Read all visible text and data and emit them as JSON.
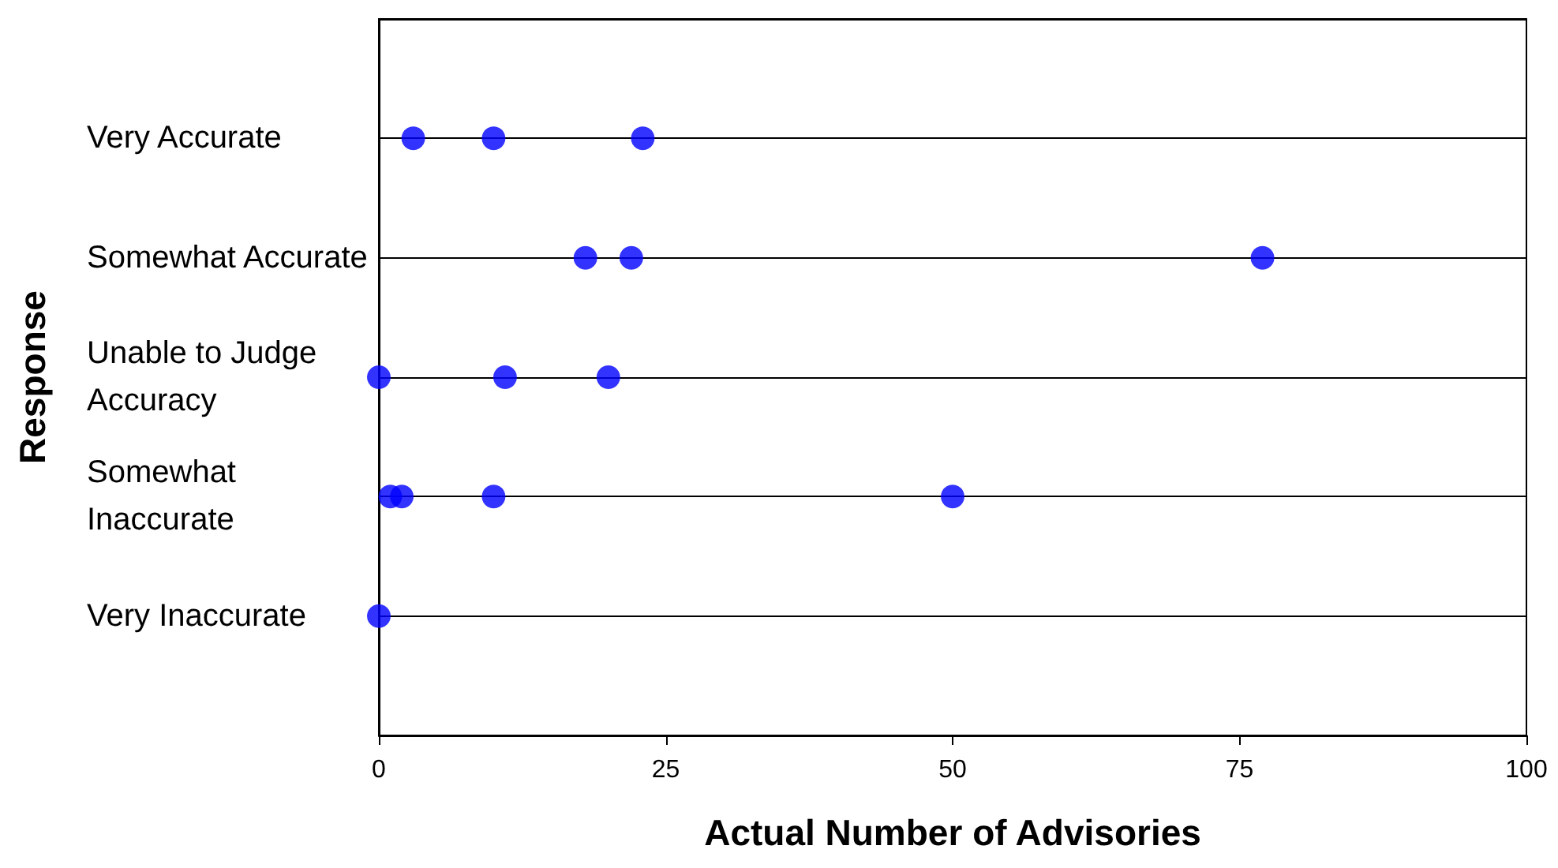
{
  "chart_data": {
    "type": "scatter",
    "orientation": "horizontal",
    "xlabel": "Actual Number of Advisories",
    "ylabel": "Response",
    "categories": [
      "Very Accurate",
      "Somewhat Accurate",
      "Unable to Judge Accuracy",
      "Somewhat Inaccurate",
      "Very Inaccurate"
    ],
    "series": [
      {
        "color": "#0000ff",
        "values": [
          3,
          18,
          0,
          1,
          0
        ]
      },
      {
        "color": "#0000ff",
        "values": [
          10,
          22,
          11,
          2,
          null
        ]
      },
      {
        "color": "#0000ff",
        "values": [
          23,
          77,
          20,
          10,
          null
        ]
      },
      {
        "color": "#0000ff",
        "values": [
          null,
          null,
          null,
          50,
          null
        ]
      }
    ],
    "xlim": [
      0,
      100
    ],
    "xticks": [
      0,
      25,
      50,
      75,
      100
    ],
    "grid": "y",
    "marker": "circle"
  }
}
